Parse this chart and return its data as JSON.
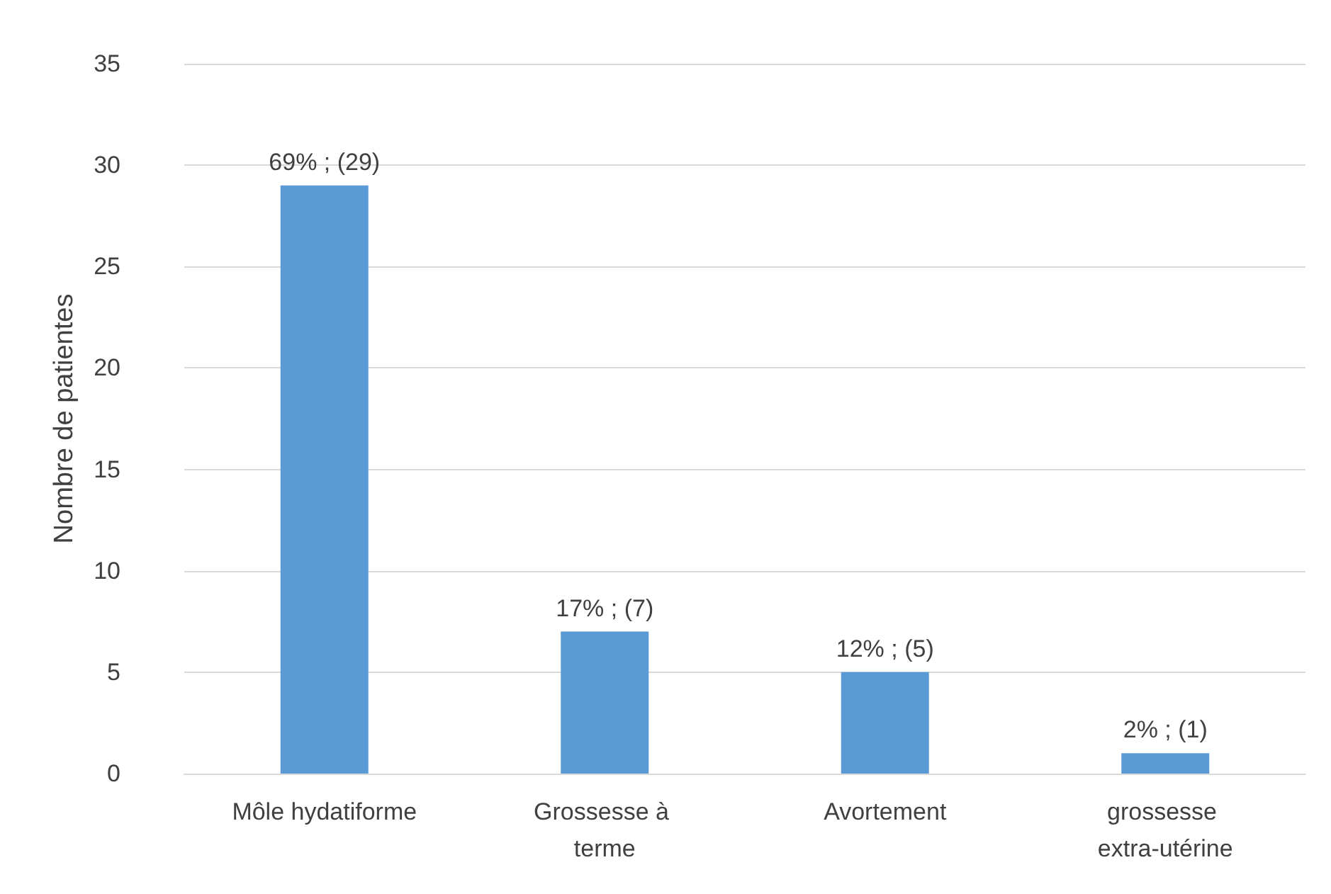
{
  "chart_data": {
    "type": "bar",
    "ylabel": "Nombre de patientes",
    "categories": [
      "Môle hydatiforme",
      "Grossesse à terme",
      "Avortement",
      "grossesse extra-utérine"
    ],
    "values": [
      29,
      7,
      5,
      1
    ],
    "value_labels": [
      "69% ; (29)",
      "17% ; (7)",
      "12% ; (5)",
      "2% ; (1)"
    ],
    "color": "#5b9bd5",
    "ylim": [
      0,
      35
    ],
    "yticks": [
      0,
      5,
      10,
      15,
      20,
      25,
      30,
      35
    ],
    "grid": "y"
  }
}
